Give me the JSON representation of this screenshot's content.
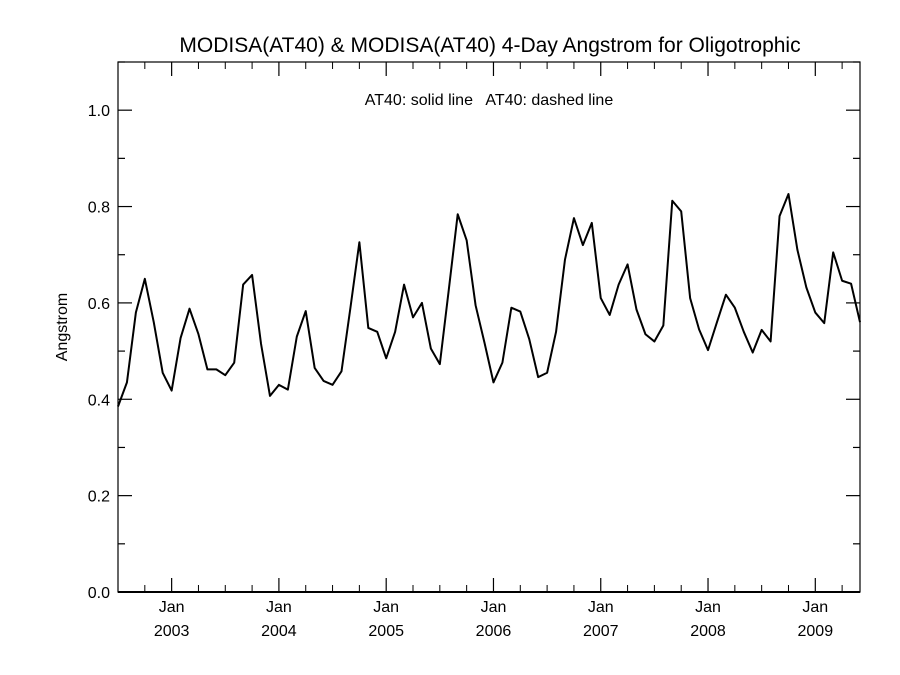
{
  "chart_data": {
    "type": "line",
    "title": "MODISA(AT40) & MODISA(AT40) 4-Day Angstrom for Oligotrophic",
    "ylabel": "Angstrom",
    "xlabel": "",
    "annotation": "AT40: solid line   AT40: dashed line",
    "ylim": [
      0.0,
      1.1
    ],
    "y_ticks": [
      "0.0",
      "0.2",
      "0.4",
      "0.6",
      "0.8",
      "1.0"
    ],
    "x_range": [
      "2002-07",
      "2009-06"
    ],
    "x_ticks": [
      {
        "month": "Jan",
        "year": "2003"
      },
      {
        "month": "Jan",
        "year": "2004"
      },
      {
        "month": "Jan",
        "year": "2005"
      },
      {
        "month": "Jan",
        "year": "2006"
      },
      {
        "month": "Jan",
        "year": "2007"
      },
      {
        "month": "Jan",
        "year": "2008"
      },
      {
        "month": "Jan",
        "year": "2009"
      }
    ],
    "grid": false,
    "series": [
      {
        "style": "solid",
        "color": "#000000",
        "x": [
          "2002-07",
          "2002-08",
          "2002-09",
          "2002-10",
          "2002-11",
          "2002-12",
          "2003-01",
          "2003-02",
          "2003-03",
          "2003-04",
          "2003-05",
          "2003-06",
          "2003-07",
          "2003-08",
          "2003-09",
          "2003-10",
          "2003-11",
          "2003-12",
          "2004-01",
          "2004-02",
          "2004-03",
          "2004-04",
          "2004-05",
          "2004-06",
          "2004-07",
          "2004-08",
          "2004-09",
          "2004-10",
          "2004-11",
          "2004-12",
          "2005-01",
          "2005-02",
          "2005-03",
          "2005-04",
          "2005-05",
          "2005-06",
          "2005-07",
          "2005-08",
          "2005-09",
          "2005-10",
          "2005-11",
          "2005-12",
          "2006-01",
          "2006-02",
          "2006-03",
          "2006-04",
          "2006-05",
          "2006-06",
          "2006-07",
          "2006-08",
          "2006-09",
          "2006-10",
          "2006-11",
          "2006-12",
          "2007-01",
          "2007-02",
          "2007-03",
          "2007-04",
          "2007-05",
          "2007-06",
          "2007-07",
          "2007-08",
          "2007-09",
          "2007-10",
          "2007-11",
          "2007-12",
          "2008-01",
          "2008-02",
          "2008-03",
          "2008-04",
          "2008-05",
          "2008-06",
          "2008-07",
          "2008-08",
          "2008-09",
          "2008-10",
          "2008-11",
          "2008-12",
          "2009-01",
          "2009-02",
          "2009-03",
          "2009-04",
          "2009-05",
          "2009-06"
        ],
        "y": [
          0.385,
          0.435,
          0.58,
          0.65,
          0.56,
          0.455,
          0.418,
          0.527,
          0.588,
          0.535,
          0.462,
          0.462,
          0.45,
          0.476,
          0.638,
          0.658,
          0.515,
          0.407,
          0.43,
          0.42,
          0.53,
          0.583,
          0.465,
          0.438,
          0.43,
          0.458,
          0.59,
          0.726,
          0.548,
          0.54,
          0.485,
          0.54,
          0.638,
          0.57,
          0.6,
          0.505,
          0.473,
          0.627,
          0.784,
          0.73,
          0.595,
          0.517,
          0.435,
          0.476,
          0.59,
          0.582,
          0.525,
          0.446,
          0.455,
          0.54,
          0.69,
          0.776,
          0.72,
          0.766,
          0.61,
          0.575,
          0.638,
          0.68,
          0.586,
          0.535,
          0.52,
          0.553,
          0.812,
          0.79,
          0.61,
          0.545,
          0.502,
          0.56,
          0.617,
          0.59,
          0.54,
          0.497,
          0.544,
          0.52,
          0.78,
          0.826,
          0.71,
          0.632,
          0.58,
          0.558,
          0.705,
          0.646,
          0.64,
          0.56
        ]
      }
    ]
  }
}
